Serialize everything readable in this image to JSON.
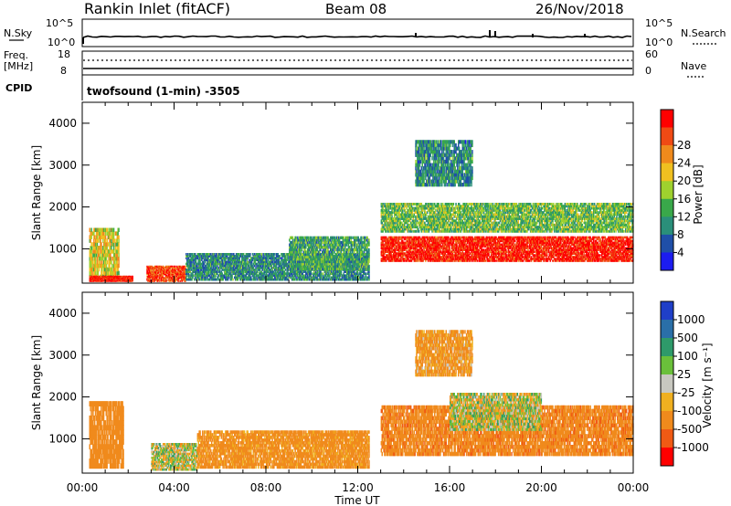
{
  "header": {
    "station": "Rankin Inlet (fitACF)",
    "beam": "Beam 08",
    "date": "26/Nov/2018"
  },
  "strip": {
    "nsky_label": "N.Sky",
    "nsky_ticks": [
      "10^5",
      "10^0"
    ],
    "nsearch_label": "N.Search",
    "nsearch_ticks": [
      "10^5",
      "10^0"
    ],
    "freq_label_1": "Freq.",
    "freq_label_2": "[MHz]",
    "freq_ticks": [
      "18",
      "8"
    ],
    "nave_label": "Nave",
    "nave_ticks": [
      "60",
      "0"
    ],
    "cpid_label": "CPID",
    "cpid_text": "twofsound (1-min) -3505"
  },
  "axes": {
    "xlabel": "Time UT",
    "x_ticks": [
      "00:00",
      "04:00",
      "08:00",
      "12:00",
      "16:00",
      "20:00",
      "00:00"
    ],
    "ylabel": "Slant Range [km]",
    "y_ticks": [
      "1000",
      "2000",
      "3000",
      "4000"
    ],
    "ylim": [
      180,
      4500
    ]
  },
  "power_colorbar": {
    "label": "Power [dB]",
    "ticks": [
      "4",
      "8",
      "12",
      "16",
      "20",
      "24",
      "28"
    ],
    "colors": [
      "#1c1cf0",
      "#1f4fa8",
      "#2a8f7a",
      "#39a84a",
      "#9fd12e",
      "#f0c020",
      "#f08a1c",
      "#f04a14",
      "#ff0000"
    ]
  },
  "velocity_colorbar": {
    "label": "Velocity [m s⁻¹]",
    "ticks": [
      "1000",
      "500",
      "100",
      "25",
      "-25",
      "-100",
      "-500",
      "-1000"
    ],
    "colors": [
      "#1f3fc8",
      "#2a6fa8",
      "#2e9a6a",
      "#6ac03a",
      "#c8c8c0",
      "#f0b020",
      "#f08a1c",
      "#f05a14",
      "#ff0000"
    ]
  },
  "chart_data": [
    {
      "type": "heatmap",
      "title": "Power [dB]",
      "xlabel": "Time UT",
      "ylabel": "Slant Range [km]",
      "xlim": [
        "00:00",
        "24:00"
      ],
      "ylim": [
        180,
        4500
      ],
      "echo_regions": [
        {
          "t": [
            0.3,
            1.6
          ],
          "range": [
            300,
            1500
          ],
          "value": 18
        },
        {
          "t": [
            0.3,
            2.2
          ],
          "range": [
            220,
            360
          ],
          "value": 28
        },
        {
          "t": [
            2.8,
            4.5
          ],
          "range": [
            220,
            600
          ],
          "value": 26
        },
        {
          "t": [
            4.5,
            12.5
          ],
          "range": [
            250,
            900
          ],
          "value": 10
        },
        {
          "t": [
            9.0,
            12.5
          ],
          "range": [
            500,
            1300
          ],
          "value": 12
        },
        {
          "t": [
            13.0,
            24.0
          ],
          "range": [
            700,
            1300
          ],
          "value": 28
        },
        {
          "t": [
            13.0,
            24.0
          ],
          "range": [
            1400,
            2100
          ],
          "value": 14
        },
        {
          "t": [
            14.5,
            17.0
          ],
          "range": [
            2500,
            3600
          ],
          "value": 10
        }
      ]
    },
    {
      "type": "heatmap",
      "title": "Velocity [m s⁻¹]",
      "xlabel": "Time UT",
      "ylabel": "Slant Range [km]",
      "xlim": [
        "00:00",
        "24:00"
      ],
      "ylim": [
        180,
        4500
      ],
      "echo_regions": [
        {
          "t": [
            0.3,
            1.8
          ],
          "range": [
            300,
            1900
          ],
          "value": -300
        },
        {
          "t": [
            3.0,
            5.0
          ],
          "range": [
            250,
            900
          ],
          "value": 0
        },
        {
          "t": [
            5.0,
            12.5
          ],
          "range": [
            300,
            1200
          ],
          "value": -200
        },
        {
          "t": [
            13.0,
            24.0
          ],
          "range": [
            600,
            1800
          ],
          "value": -400
        },
        {
          "t": [
            16.0,
            20.0
          ],
          "range": [
            1200,
            2100
          ],
          "value": 0
        },
        {
          "t": [
            14.5,
            17.0
          ],
          "range": [
            2500,
            3600
          ],
          "value": -150
        }
      ]
    }
  ]
}
